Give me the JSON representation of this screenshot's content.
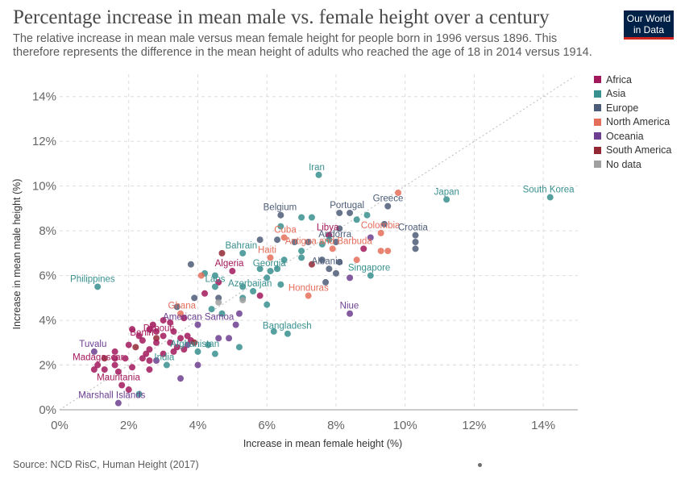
{
  "header": {
    "title": "Percentage increase in mean male vs. female height over a century",
    "subtitle": "The relative increase in mean male versus mean female height for people born in 1996 versus 1896. This therefore represents the difference in the mean height of adults who reached the age of 18 in 2014 versus 1914.",
    "logo_line1": "Our World",
    "logo_line2": "in Data"
  },
  "footer": {
    "source": "Source: NCD RisC, Human Height (2017)"
  },
  "colors": {
    "Africa": "#a2185b",
    "Asia": "#38908f",
    "Europe": "#4c5c78",
    "North America": "#e56e5a",
    "Oceania": "#6d3e91",
    "South America": "#932834",
    "No data": "#a0a0a0"
  },
  "legend": [
    "Africa",
    "Asia",
    "Europe",
    "North America",
    "Oceania",
    "South America",
    "No data"
  ],
  "chart_data": {
    "type": "scatter",
    "xlabel": "Increase in mean female height (%)",
    "ylabel": "Increase in mean male height (%)",
    "xlim": [
      0,
      15
    ],
    "ylim": [
      0,
      15
    ],
    "x_ticks": [
      "0%",
      "2%",
      "4%",
      "6%",
      "8%",
      "10%",
      "12%",
      "14%"
    ],
    "y_ticks": [
      "0%",
      "2%",
      "4%",
      "6%",
      "8%",
      "10%",
      "12%",
      "14%"
    ],
    "grid": true,
    "diagonal_reference_line": true,
    "points": [
      {
        "x": 14.2,
        "y": 9.5,
        "region": "Asia",
        "label": "South Korea"
      },
      {
        "x": 11.2,
        "y": 9.4,
        "region": "Asia",
        "label": "Japan"
      },
      {
        "x": 9.8,
        "y": 9.7,
        "region": "North America"
      },
      {
        "x": 9.5,
        "y": 9.1,
        "region": "Europe",
        "label": "Greece"
      },
      {
        "x": 7.5,
        "y": 10.5,
        "region": "Asia",
        "label": "Iran"
      },
      {
        "x": 8.4,
        "y": 8.8,
        "region": "Europe",
        "label": "Portugal"
      },
      {
        "x": 8.1,
        "y": 8.8,
        "region": "Europe"
      },
      {
        "x": 8.6,
        "y": 8.5,
        "region": "Asia"
      },
      {
        "x": 8.9,
        "y": 8.7,
        "region": "Asia"
      },
      {
        "x": 6.4,
        "y": 8.7,
        "region": "Europe",
        "label": "Belgium"
      },
      {
        "x": 7.0,
        "y": 8.6,
        "region": "Asia"
      },
      {
        "x": 7.3,
        "y": 8.6,
        "region": "Asia"
      },
      {
        "x": 6.4,
        "y": 8.2,
        "region": "Asia"
      },
      {
        "x": 9.4,
        "y": 8.3,
        "region": "Europe"
      },
      {
        "x": 9.3,
        "y": 7.9,
        "region": "North America",
        "label": "Colombia"
      },
      {
        "x": 10.3,
        "y": 7.8,
        "region": "Europe",
        "label": "Croatia"
      },
      {
        "x": 10.3,
        "y": 7.5,
        "region": "Europe"
      },
      {
        "x": 10.3,
        "y": 7.2,
        "region": "Europe"
      },
      {
        "x": 8.1,
        "y": 8.1,
        "region": "Europe"
      },
      {
        "x": 7.8,
        "y": 7.8,
        "region": "Africa",
        "label": "Libya"
      },
      {
        "x": 8.0,
        "y": 7.5,
        "region": "Europe",
        "label": "Andorra"
      },
      {
        "x": 9.0,
        "y": 7.7,
        "region": "Oceania"
      },
      {
        "x": 8.8,
        "y": 7.2,
        "region": "Africa"
      },
      {
        "x": 9.5,
        "y": 7.1,
        "region": "North America"
      },
      {
        "x": 9.3,
        "y": 7.1,
        "region": "North America"
      },
      {
        "x": 7.9,
        "y": 7.2,
        "region": "North America",
        "label": "Antigua and Barbuda"
      },
      {
        "x": 6.5,
        "y": 7.7,
        "region": "North America",
        "label": "Cuba"
      },
      {
        "x": 5.8,
        "y": 7.6,
        "region": "Europe"
      },
      {
        "x": 6.3,
        "y": 7.6,
        "region": "Europe"
      },
      {
        "x": 6.8,
        "y": 7.5,
        "region": "Europe"
      },
      {
        "x": 7.2,
        "y": 7.5,
        "region": "Europe"
      },
      {
        "x": 7.6,
        "y": 7.4,
        "region": "Asia"
      },
      {
        "x": 7.8,
        "y": 7.6,
        "region": "Asia"
      },
      {
        "x": 7.0,
        "y": 7.1,
        "region": "Asia"
      },
      {
        "x": 5.3,
        "y": 7.0,
        "region": "Asia",
        "label": "Bahrain"
      },
      {
        "x": 4.7,
        "y": 7.0,
        "region": "South America"
      },
      {
        "x": 6.1,
        "y": 6.8,
        "region": "North America",
        "label": "Haiti"
      },
      {
        "x": 6.5,
        "y": 6.7,
        "region": "Asia"
      },
      {
        "x": 7.0,
        "y": 6.8,
        "region": "Asia"
      },
      {
        "x": 7.6,
        "y": 6.7,
        "region": "Europe"
      },
      {
        "x": 8.1,
        "y": 6.6,
        "region": "Europe"
      },
      {
        "x": 8.6,
        "y": 6.7,
        "region": "North America"
      },
      {
        "x": 7.3,
        "y": 6.5,
        "region": "South America"
      },
      {
        "x": 3.8,
        "y": 6.5,
        "region": "Europe"
      },
      {
        "x": 5.0,
        "y": 6.2,
        "region": "Africa",
        "label": "Algeria"
      },
      {
        "x": 6.1,
        "y": 6.2,
        "region": "Asia",
        "label": "Georgia"
      },
      {
        "x": 5.8,
        "y": 6.3,
        "region": "Asia"
      },
      {
        "x": 6.3,
        "y": 6.3,
        "region": "Asia"
      },
      {
        "x": 7.8,
        "y": 6.3,
        "region": "Europe",
        "label": "Albania"
      },
      {
        "x": 8.0,
        "y": 6.1,
        "region": "Europe"
      },
      {
        "x": 9.0,
        "y": 6.0,
        "region": "Asia",
        "label": "Singapore"
      },
      {
        "x": 8.4,
        "y": 5.9,
        "region": "Oceania"
      },
      {
        "x": 4.2,
        "y": 6.1,
        "region": "Asia"
      },
      {
        "x": 4.5,
        "y": 6.0,
        "region": "Asia"
      },
      {
        "x": 4.1,
        "y": 6.0,
        "region": "North America"
      },
      {
        "x": 6.0,
        "y": 5.9,
        "region": "Asia"
      },
      {
        "x": 4.6,
        "y": 5.7,
        "region": "Africa"
      },
      {
        "x": 4.5,
        "y": 5.5,
        "region": "Asia",
        "label": "Laos"
      },
      {
        "x": 5.3,
        "y": 5.5,
        "region": "Asia"
      },
      {
        "x": 6.4,
        "y": 5.6,
        "region": "Asia"
      },
      {
        "x": 7.7,
        "y": 5.7,
        "region": "Europe"
      },
      {
        "x": 1.1,
        "y": 5.5,
        "region": "Asia",
        "label": "Philippines"
      },
      {
        "x": 5.6,
        "y": 5.3,
        "region": "Asia",
        "label": "Azerbaijan"
      },
      {
        "x": 7.2,
        "y": 5.1,
        "region": "North America",
        "label": "Honduras"
      },
      {
        "x": 5.8,
        "y": 5.1,
        "region": "Africa"
      },
      {
        "x": 3.9,
        "y": 5.0,
        "region": "Europe"
      },
      {
        "x": 4.6,
        "y": 5.0,
        "region": "Europe"
      },
      {
        "x": 5.3,
        "y": 5.0,
        "region": "Asia"
      },
      {
        "x": 4.2,
        "y": 5.2,
        "region": "Africa"
      },
      {
        "x": 4.6,
        "y": 4.8,
        "region": "No data"
      },
      {
        "x": 5.3,
        "y": 4.9,
        "region": "No data"
      },
      {
        "x": 6.0,
        "y": 4.7,
        "region": "Asia"
      },
      {
        "x": 3.4,
        "y": 4.6,
        "region": "Europe"
      },
      {
        "x": 4.4,
        "y": 4.5,
        "region": "Asia"
      },
      {
        "x": 3.5,
        "y": 4.3,
        "region": "North America",
        "label": "Ghana"
      },
      {
        "x": 8.4,
        "y": 4.3,
        "region": "Oceania",
        "label": "Niue"
      },
      {
        "x": 4.7,
        "y": 4.3,
        "region": "Asia"
      },
      {
        "x": 5.2,
        "y": 4.3,
        "region": "Oceania"
      },
      {
        "x": 3.6,
        "y": 4.1,
        "region": "Africa"
      },
      {
        "x": 3.0,
        "y": 4.0,
        "region": "Africa"
      },
      {
        "x": 3.2,
        "y": 3.9,
        "region": "Africa"
      },
      {
        "x": 2.7,
        "y": 3.8,
        "region": "Africa"
      },
      {
        "x": 4.0,
        "y": 3.8,
        "region": "Oceania",
        "label": "American Samoa"
      },
      {
        "x": 5.1,
        "y": 3.8,
        "region": "Oceania"
      },
      {
        "x": 2.1,
        "y": 3.6,
        "region": "Africa"
      },
      {
        "x": 2.6,
        "y": 3.6,
        "region": "Africa"
      },
      {
        "x": 2.8,
        "y": 3.5,
        "region": "Africa"
      },
      {
        "x": 3.3,
        "y": 3.5,
        "region": "Africa"
      },
      {
        "x": 3.0,
        "y": 3.3,
        "region": "Africa",
        "label": "Djibouti"
      },
      {
        "x": 2.3,
        "y": 3.3,
        "region": "Africa"
      },
      {
        "x": 2.8,
        "y": 3.2,
        "region": "South America"
      },
      {
        "x": 3.5,
        "y": 3.2,
        "region": "Africa"
      },
      {
        "x": 3.7,
        "y": 3.3,
        "region": "Africa"
      },
      {
        "x": 4.6,
        "y": 3.2,
        "region": "Oceania"
      },
      {
        "x": 4.9,
        "y": 3.2,
        "region": "Oceania"
      },
      {
        "x": 6.2,
        "y": 3.5,
        "region": "Asia"
      },
      {
        "x": 6.6,
        "y": 3.4,
        "region": "Asia",
        "label": "Bangladesh"
      },
      {
        "x": 2.4,
        "y": 3.1,
        "region": "Africa",
        "label": "Benin"
      },
      {
        "x": 2.8,
        "y": 3.0,
        "region": "Africa"
      },
      {
        "x": 3.2,
        "y": 3.0,
        "region": "Africa"
      },
      {
        "x": 3.8,
        "y": 3.1,
        "region": "Africa"
      },
      {
        "x": 3.9,
        "y": 3.0,
        "region": "South America"
      },
      {
        "x": 2.0,
        "y": 2.9,
        "region": "Africa"
      },
      {
        "x": 3.7,
        "y": 2.9,
        "region": "Oceania"
      },
      {
        "x": 4.3,
        "y": 2.9,
        "region": "Asia"
      },
      {
        "x": 2.2,
        "y": 2.8,
        "region": "South America"
      },
      {
        "x": 2.6,
        "y": 2.7,
        "region": "Africa"
      },
      {
        "x": 3.4,
        "y": 2.8,
        "region": "Africa"
      },
      {
        "x": 3.6,
        "y": 2.7,
        "region": "Africa"
      },
      {
        "x": 5.2,
        "y": 2.8,
        "region": "Asia"
      },
      {
        "x": 1.0,
        "y": 2.6,
        "region": "Oceania",
        "label": "Tuvalu"
      },
      {
        "x": 1.6,
        "y": 2.6,
        "region": "Africa"
      },
      {
        "x": 2.5,
        "y": 2.5,
        "region": "Africa"
      },
      {
        "x": 3.0,
        "y": 2.5,
        "region": "Africa"
      },
      {
        "x": 3.3,
        "y": 2.6,
        "region": "Africa"
      },
      {
        "x": 4.0,
        "y": 2.6,
        "region": "Asia",
        "label": "Afghanistan"
      },
      {
        "x": 4.5,
        "y": 2.5,
        "region": "Asia"
      },
      {
        "x": 1.3,
        "y": 2.3,
        "region": "South America"
      },
      {
        "x": 1.6,
        "y": 2.3,
        "region": "Africa"
      },
      {
        "x": 1.9,
        "y": 2.3,
        "region": "Africa"
      },
      {
        "x": 2.4,
        "y": 2.3,
        "region": "Africa"
      },
      {
        "x": 2.6,
        "y": 2.2,
        "region": "Africa"
      },
      {
        "x": 1.1,
        "y": 2.0,
        "region": "Africa",
        "label": "Madagascar"
      },
      {
        "x": 1.6,
        "y": 2.0,
        "region": "Africa"
      },
      {
        "x": 2.8,
        "y": 2.2,
        "region": "Oceania"
      },
      {
        "x": 3.1,
        "y": 2.0,
        "region": "Asia",
        "label": "India"
      },
      {
        "x": 4.0,
        "y": 2.0,
        "region": "Oceania"
      },
      {
        "x": 1.0,
        "y": 1.8,
        "region": "Africa"
      },
      {
        "x": 1.3,
        "y": 1.8,
        "region": "Africa"
      },
      {
        "x": 1.7,
        "y": 1.7,
        "region": "Africa"
      },
      {
        "x": 2.1,
        "y": 1.9,
        "region": "Africa"
      },
      {
        "x": 2.6,
        "y": 1.8,
        "region": "Africa"
      },
      {
        "x": 3.5,
        "y": 1.4,
        "region": "Oceania"
      },
      {
        "x": 1.8,
        "y": 1.1,
        "region": "Africa",
        "label": "Mauritania"
      },
      {
        "x": 2.0,
        "y": 0.9,
        "region": "Africa"
      },
      {
        "x": 2.3,
        "y": 0.7,
        "region": "Asia"
      },
      {
        "x": 1.7,
        "y": 0.3,
        "region": "Oceania",
        "label": "Marshall Islands"
      }
    ]
  }
}
